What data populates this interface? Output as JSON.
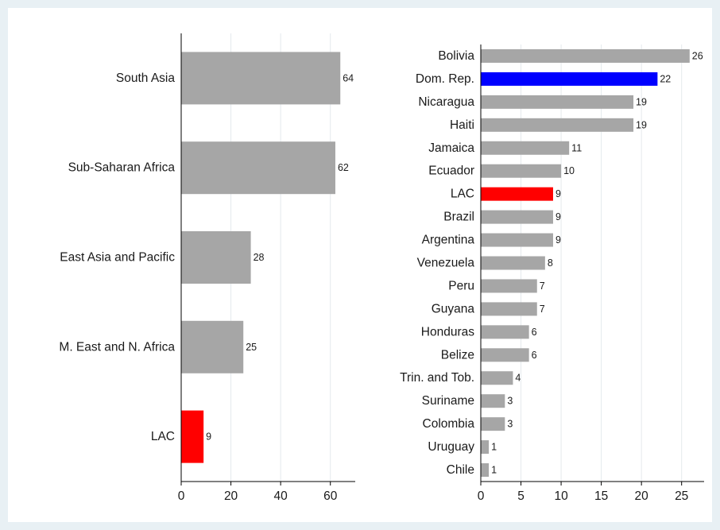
{
  "chart_data": [
    {
      "type": "bar",
      "orientation": "horizontal",
      "categories": [
        "South Asia",
        "Sub-Saharan Africa",
        "East Asia and Pacific",
        "M. East and N. Africa",
        "LAC"
      ],
      "values": [
        64,
        62,
        28,
        25,
        9
      ],
      "bar_colors": [
        "#a6a6a6",
        "#a6a6a6",
        "#a6a6a6",
        "#a6a6a6",
        "#ff0000"
      ],
      "data_labels": [
        "64",
        "62",
        "28",
        "25",
        "9"
      ],
      "xticks": [
        0,
        20,
        40,
        60
      ],
      "xtick_labels": [
        "0",
        "20",
        "40",
        "60"
      ],
      "xlim": [
        0,
        70
      ],
      "grid": true,
      "title": "",
      "xlabel": "",
      "ylabel": ""
    },
    {
      "type": "bar",
      "orientation": "horizontal",
      "categories": [
        "Bolivia",
        "Dom. Rep.",
        "Nicaragua",
        "Haiti",
        "Jamaica",
        "Ecuador",
        "LAC",
        "Brazil",
        "Argentina",
        "Venezuela",
        "Peru",
        "Guyana",
        "Honduras",
        "Belize",
        "Trin. and Tob.",
        "Suriname",
        "Colombia",
        "Uruguay",
        "Chile"
      ],
      "values": [
        26,
        22,
        19,
        19,
        11,
        10,
        9,
        9,
        9,
        8,
        7,
        7,
        6,
        6,
        4,
        3,
        3,
        1,
        1
      ],
      "bar_colors": [
        "#a6a6a6",
        "#0000ff",
        "#a6a6a6",
        "#a6a6a6",
        "#a6a6a6",
        "#a6a6a6",
        "#ff0000",
        "#a6a6a6",
        "#a6a6a6",
        "#a6a6a6",
        "#a6a6a6",
        "#a6a6a6",
        "#a6a6a6",
        "#a6a6a6",
        "#a6a6a6",
        "#a6a6a6",
        "#a6a6a6",
        "#a6a6a6",
        "#a6a6a6"
      ],
      "data_labels": [
        "26",
        "22",
        "19",
        "19",
        "11",
        "10",
        "9",
        "9",
        "9",
        "8",
        "7",
        "7",
        "6",
        "6",
        "4",
        "3",
        "3",
        "1",
        "1"
      ],
      "xticks": [
        0,
        5,
        10,
        15,
        20,
        25
      ],
      "xtick_labels": [
        "0",
        "5",
        "10",
        "15",
        "20",
        "25"
      ],
      "xlim": [
        0,
        27.8
      ],
      "grid": true,
      "title": "",
      "xlabel": "",
      "ylabel": ""
    }
  ]
}
